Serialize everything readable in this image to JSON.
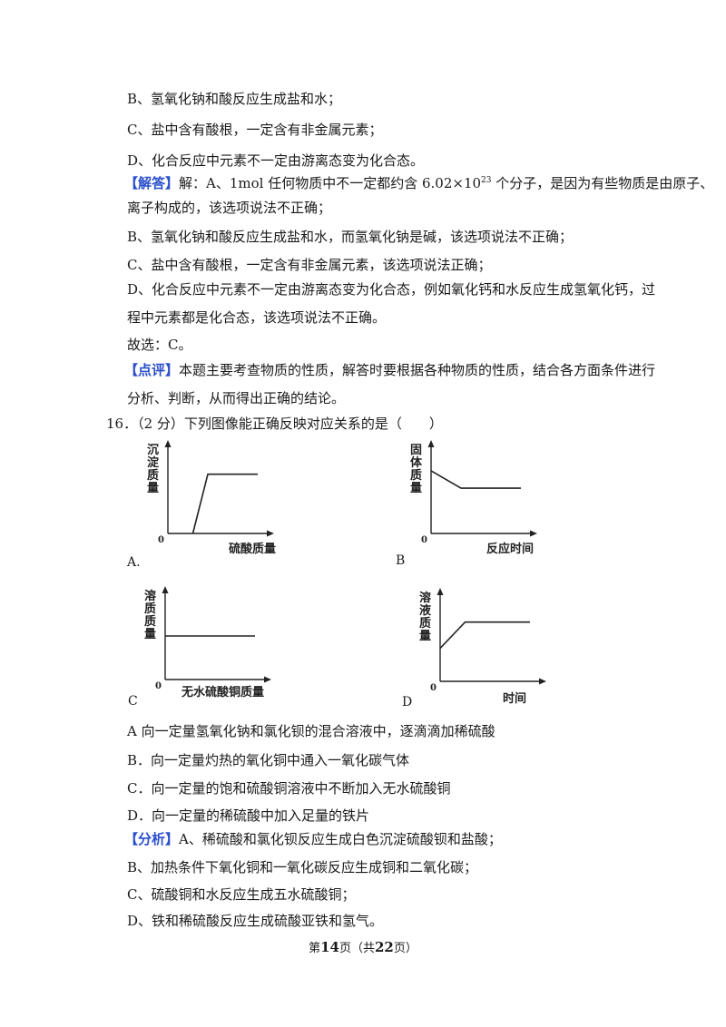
{
  "opts": {
    "b": "B、氢氧化钠和酸反应生成盐和水；",
    "c": "C、盐中含有酸根，一定含有非金属元素；",
    "d": "D、化合反应中元素不一定由游离态变为化合态。"
  },
  "answer": {
    "tag": "【解答】",
    "a_pre": "解：A、1mol 任何物质中不一定都约含 6.02×10",
    "a_sup": "23",
    "a_post": " 个分子，是因为有些物质是由原子、",
    "a_line2": "离子构成的，该选项说法不正确；",
    "b": "B、氢氧化钠和酸反应生成盐和水，而氢氧化钠是碱，该选项说法不正确；",
    "c": "C、盐中含有酸根，一定含有非金属元素，该选项说法正确；",
    "d1": "D、化合反应中元素不一定由游离态变为化合态，例如氧化钙和水反应生成氢氧化钙，过",
    "d2": "程中元素都是化合态，该选项说法不正确。",
    "choice": "故选：C。"
  },
  "comment": {
    "tag": "【点评】",
    "l1": "本题主要考查物质的性质，解答时要根据各种物质的性质，结合各方面条件进行",
    "l2": "分析、判断，从而得出正确的结论。"
  },
  "q16": {
    "stem": "16．（2 分）下列图像能正确反映对应关系的是（　　）"
  },
  "graphs": [
    {
      "id": "A",
      "label": "A.",
      "origin": "0",
      "ylabel": [
        "沉",
        "淀",
        "质",
        "量"
      ],
      "xlabel": "硫酸质量",
      "curve_desc": "starts at zero after a delay, rises linearly, then levels off",
      "points": [
        [
          0.25,
          0
        ],
        [
          0.4,
          0.68
        ],
        [
          0.9,
          0.68
        ]
      ]
    },
    {
      "id": "B",
      "label": "B",
      "origin": "0",
      "ylabel": [
        "固",
        "体",
        "质",
        "量"
      ],
      "xlabel": "反应时间",
      "curve_desc": "starts high, decreases, then levels off",
      "points": [
        [
          0,
          0.72
        ],
        [
          0.3,
          0.52
        ],
        [
          0.9,
          0.52
        ]
      ]
    },
    {
      "id": "C",
      "label": "C",
      "origin": "0",
      "ylabel": [
        "溶",
        "质",
        "质",
        "量"
      ],
      "xlabel": "无水硫酸铜质量",
      "curve_desc": "constant horizontal line",
      "points": [
        [
          0,
          0.5
        ],
        [
          0.9,
          0.5
        ]
      ]
    },
    {
      "id": "D",
      "label": "D",
      "origin": "0",
      "ylabel": [
        "溶",
        "液",
        "质",
        "量"
      ],
      "xlabel": "时间",
      "curve_desc": "starts above zero, rises, then levels off",
      "points": [
        [
          0,
          0.38
        ],
        [
          0.25,
          0.68
        ],
        [
          0.9,
          0.68
        ]
      ]
    }
  ],
  "q16_opts": {
    "a": "A  向一定量氢氧化钠和氯化钡的混合溶液中，逐滴滴加稀硫酸",
    "b": "B．向一定量灼热的氧化铜中通入一氧化碳气体",
    "c": "C．向一定量的饱和硫酸铜溶液中不断加入无水硫酸铜",
    "d": "D．向一定量的稀硫酸中加入足量的铁片"
  },
  "analysis": {
    "tag": "【分析】",
    "a": "A、稀硫酸和氯化钡反应生成白色沉淀硫酸钡和盐酸；",
    "b": "B、加热条件下氧化铜和一氧化碳反应生成铜和二氧化碳；",
    "c": "C、硫酸铜和水反应生成五水硫酸铜；",
    "d": "D、铁和稀硫酸反应生成硫酸亚铁和氢气。"
  },
  "footer": {
    "pre": "第",
    "page": "14",
    "mid": "页（共",
    "total": "22",
    "post": "页）"
  }
}
